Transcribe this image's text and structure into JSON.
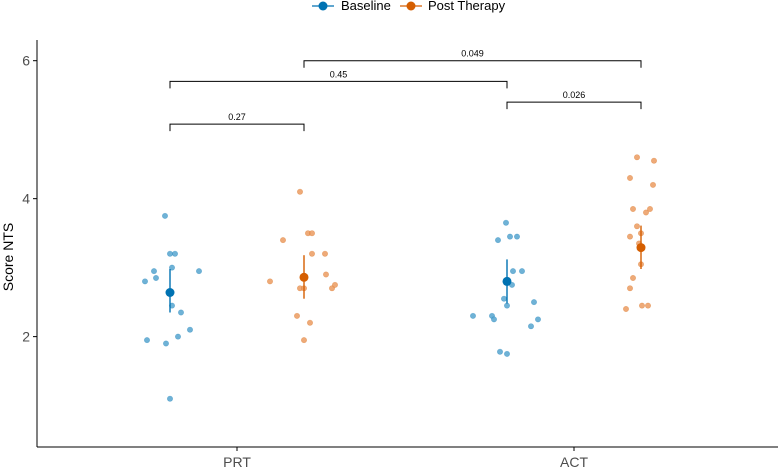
{
  "chart_data": {
    "type": "scatter",
    "title": "",
    "xlabel": "",
    "ylabel": "Score NTS",
    "categories": [
      "PRT",
      "ACT"
    ],
    "ylim": [
      0.4,
      6.3
    ],
    "yticks": [
      2,
      4,
      6
    ],
    "legend": {
      "position": "top",
      "entries": [
        {
          "name": "Baseline",
          "color": "#0072B2"
        },
        {
          "name": "Post Therapy",
          "color": "#D55E00"
        }
      ]
    },
    "series": [
      {
        "name": "Baseline",
        "color": "#0072B2",
        "point_color": "#56a4cf",
        "groups": [
          {
            "category": "PRT",
            "mean": 2.64,
            "ci": [
              2.35,
              2.98
            ],
            "points": [
              {
                "jitter": -0.25,
                "y": 2.8
              },
              {
                "jitter": -0.23,
                "y": 1.95
              },
              {
                "jitter": -0.16,
                "y": 2.95
              },
              {
                "jitter": -0.14,
                "y": 2.85
              },
              {
                "jitter": -0.05,
                "y": 3.75
              },
              {
                "jitter": -0.04,
                "y": 1.9
              },
              {
                "jitter": 0.0,
                "y": 3.2
              },
              {
                "jitter": 0.0,
                "y": 1.1
              },
              {
                "jitter": 0.02,
                "y": 2.45
              },
              {
                "jitter": 0.02,
                "y": 3.0
              },
              {
                "jitter": 0.05,
                "y": 3.2
              },
              {
                "jitter": 0.08,
                "y": 2.0
              },
              {
                "jitter": 0.11,
                "y": 2.35
              },
              {
                "jitter": 0.2,
                "y": 2.1
              },
              {
                "jitter": 0.29,
                "y": 2.95
              }
            ]
          },
          {
            "category": "ACT",
            "mean": 2.8,
            "ci": [
              2.48,
              3.12
            ],
            "points": [
              {
                "jitter": -0.34,
                "y": 2.3
              },
              {
                "jitter": -0.15,
                "y": 2.3
              },
              {
                "jitter": -0.13,
                "y": 2.25
              },
              {
                "jitter": -0.09,
                "y": 3.4
              },
              {
                "jitter": -0.07,
                "y": 1.78
              },
              {
                "jitter": -0.03,
                "y": 2.55
              },
              {
                "jitter": -0.01,
                "y": 3.65
              },
              {
                "jitter": 0.0,
                "y": 2.45
              },
              {
                "jitter": 0.0,
                "y": 1.75
              },
              {
                "jitter": 0.03,
                "y": 3.45
              },
              {
                "jitter": 0.05,
                "y": 2.75
              },
              {
                "jitter": 0.06,
                "y": 2.95
              },
              {
                "jitter": 0.1,
                "y": 3.45
              },
              {
                "jitter": 0.15,
                "y": 2.95
              },
              {
                "jitter": 0.24,
                "y": 2.15
              },
              {
                "jitter": 0.27,
                "y": 2.5
              },
              {
                "jitter": 0.31,
                "y": 2.25
              }
            ]
          }
        ]
      },
      {
        "name": "Post Therapy",
        "color": "#D55E00",
        "point_color": "#eb9b60",
        "groups": [
          {
            "category": "PRT",
            "mean": 2.86,
            "ci": [
              2.55,
              3.18
            ],
            "points": [
              {
                "jitter": -0.34,
                "y": 2.8
              },
              {
                "jitter": -0.21,
                "y": 3.4
              },
              {
                "jitter": -0.07,
                "y": 2.3
              },
              {
                "jitter": -0.04,
                "y": 4.1
              },
              {
                "jitter": -0.04,
                "y": 2.7
              },
              {
                "jitter": 0.0,
                "y": 1.95
              },
              {
                "jitter": 0.0,
                "y": 2.7
              },
              {
                "jitter": 0.04,
                "y": 3.5
              },
              {
                "jitter": 0.06,
                "y": 2.2
              },
              {
                "jitter": 0.08,
                "y": 3.5
              },
              {
                "jitter": 0.08,
                "y": 3.2
              },
              {
                "jitter": 0.21,
                "y": 3.2
              },
              {
                "jitter": 0.22,
                "y": 2.9
              },
              {
                "jitter": 0.28,
                "y": 2.7
              },
              {
                "jitter": 0.31,
                "y": 2.75
              }
            ]
          },
          {
            "category": "ACT",
            "mean": 3.29,
            "ci": [
              2.98,
              3.61
            ],
            "points": [
              {
                "jitter": -0.15,
                "y": 2.4
              },
              {
                "jitter": -0.11,
                "y": 3.45
              },
              {
                "jitter": -0.11,
                "y": 4.3
              },
              {
                "jitter": -0.11,
                "y": 2.7
              },
              {
                "jitter": -0.08,
                "y": 3.85
              },
              {
                "jitter": -0.08,
                "y": 2.85
              },
              {
                "jitter": -0.04,
                "y": 4.6
              },
              {
                "jitter": -0.04,
                "y": 3.6
              },
              {
                "jitter": -0.02,
                "y": 3.35
              },
              {
                "jitter": 0.0,
                "y": 3.05
              },
              {
                "jitter": 0.0,
                "y": 3.5
              },
              {
                "jitter": 0.01,
                "y": 2.45
              },
              {
                "jitter": 0.05,
                "y": 3.8
              },
              {
                "jitter": 0.07,
                "y": 2.45
              },
              {
                "jitter": 0.09,
                "y": 3.85
              },
              {
                "jitter": 0.12,
                "y": 4.2
              },
              {
                "jitter": 0.13,
                "y": 4.55
              }
            ]
          }
        ]
      }
    ],
    "annotations": [
      {
        "label": "0.27",
        "from": "PRT Baseline",
        "to": "PRT Post Therapy",
        "y": 5.08
      },
      {
        "label": "0.45",
        "from": "PRT Baseline",
        "to": "ACT Baseline",
        "y": 5.7
      },
      {
        "label": "0.049",
        "from": "PRT Post Therapy",
        "to": "ACT Post Therapy",
        "y": 6.0
      },
      {
        "label": "0.026",
        "from": "ACT Baseline",
        "to": "ACT Post Therapy",
        "y": 5.4
      }
    ]
  }
}
